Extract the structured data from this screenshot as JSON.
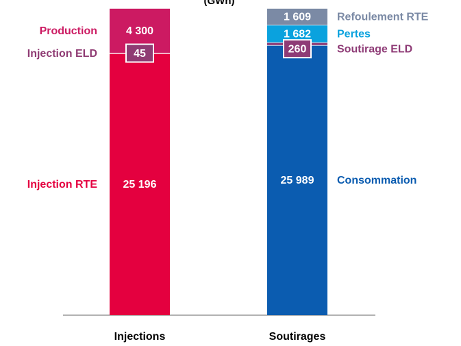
{
  "chart_data": {
    "type": "stacked-bar",
    "title": "(GWh)",
    "categories": [
      "Injections",
      "Soutirages"
    ],
    "series": [
      {
        "name": "Injection RTE",
        "color": "#e4003f",
        "values": [
          25196,
          null
        ],
        "value_labels": [
          "25 196",
          null
        ]
      },
      {
        "name": "Injection ELD",
        "color": "#8f3b73",
        "values": [
          45,
          null
        ]
      },
      {
        "name": "Production",
        "color": "#cc1a62",
        "values": [
          4300,
          null
        ],
        "value_labels": [
          "4 300",
          null
        ]
      },
      {
        "name": "Consommation",
        "color": "#0b5cb0",
        "values": [
          null,
          25989
        ],
        "value_labels": [
          null,
          "25 989"
        ]
      },
      {
        "name": "Soutirage ELD",
        "color": "#8e3b76",
        "values": [
          null,
          260
        ]
      },
      {
        "name": "Pertes",
        "color": "#0aa2de",
        "values": [
          null,
          1682
        ],
        "value_labels": [
          null,
          "1 682"
        ]
      },
      {
        "name": "Refoulement RTE",
        "color": "#7b8aa5",
        "values": [
          null,
          1609
        ],
        "value_labels": [
          null,
          "1 609"
        ]
      }
    ]
  }
}
